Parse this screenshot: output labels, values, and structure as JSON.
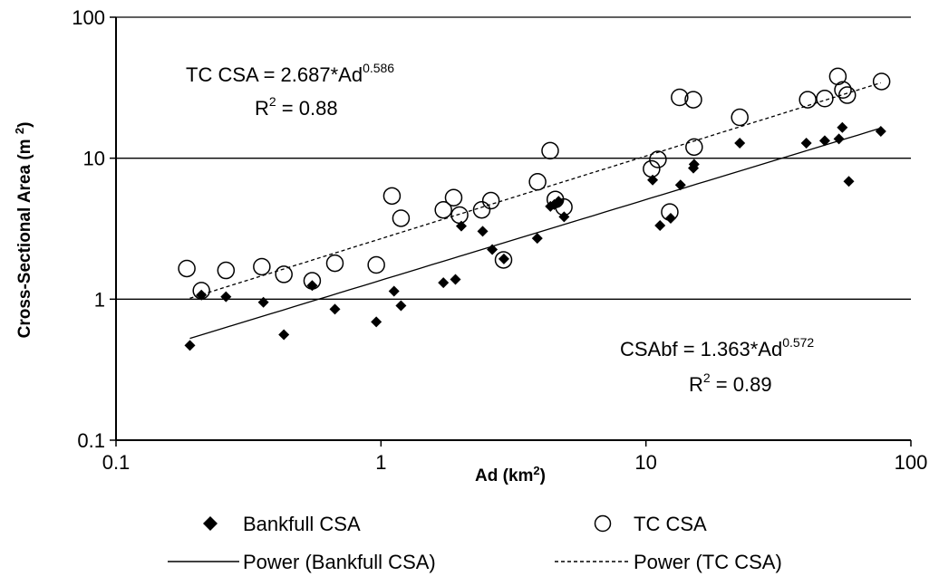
{
  "chart_data": {
    "type": "scatter",
    "x_scale": "log",
    "y_scale": "log",
    "xlim": [
      0.1,
      100
    ],
    "ylim": [
      0.1,
      100
    ],
    "x_ticks": [
      "0.1",
      "1",
      "10",
      "100"
    ],
    "y_ticks": [
      "0.1",
      "1",
      "10",
      "100"
    ],
    "xlabel": {
      "main": "Ad (km",
      "sup": "2",
      "tail": ")"
    },
    "ylabel": {
      "main": "Cross-Sectional Area (m ",
      "sup": "2",
      "tail": ")"
    },
    "grid": "horizontal major lines",
    "legend_position": "bottom",
    "series": [
      {
        "name": "Bankfull CSA",
        "marker": "filled-diamond",
        "points": [
          [
            0.19,
            0.47
          ],
          [
            0.21,
            1.07
          ],
          [
            0.26,
            1.04
          ],
          [
            0.36,
            0.95
          ],
          [
            0.43,
            0.56
          ],
          [
            0.55,
            1.25
          ],
          [
            0.67,
            0.85
          ],
          [
            0.96,
            0.69
          ],
          [
            1.12,
            1.14
          ],
          [
            1.19,
            0.9
          ],
          [
            1.72,
            1.31
          ],
          [
            1.91,
            1.38
          ],
          [
            2.01,
            3.3
          ],
          [
            2.42,
            3.03
          ],
          [
            2.63,
            2.25
          ],
          [
            2.91,
            1.93
          ],
          [
            3.89,
            2.7
          ],
          [
            4.36,
            4.55
          ],
          [
            4.51,
            4.69
          ],
          [
            4.68,
            4.95
          ],
          [
            4.91,
            3.84
          ],
          [
            10.6,
            7.0
          ],
          [
            11.3,
            3.33
          ],
          [
            12.4,
            3.75
          ],
          [
            13.5,
            6.45
          ],
          [
            15.1,
            8.5
          ],
          [
            15.2,
            9.05
          ],
          [
            22.6,
            12.8
          ],
          [
            40.3,
            12.8
          ],
          [
            47.3,
            13.3
          ],
          [
            53.5,
            13.7
          ],
          [
            55.1,
            16.5
          ],
          [
            58.3,
            6.85
          ],
          [
            77.0,
            15.5
          ]
        ]
      },
      {
        "name": "TC CSA",
        "marker": "open-circle",
        "points": [
          [
            0.185,
            1.65
          ],
          [
            0.21,
            1.15
          ],
          [
            0.26,
            1.6
          ],
          [
            0.355,
            1.7
          ],
          [
            0.43,
            1.5
          ],
          [
            0.55,
            1.35
          ],
          [
            0.67,
            1.8
          ],
          [
            0.96,
            1.75
          ],
          [
            1.1,
            5.4
          ],
          [
            1.19,
            3.75
          ],
          [
            1.72,
            4.3
          ],
          [
            1.88,
            5.25
          ],
          [
            1.98,
            3.95
          ],
          [
            2.4,
            4.3
          ],
          [
            2.6,
            5.0
          ],
          [
            2.9,
            1.9
          ],
          [
            3.9,
            6.8
          ],
          [
            4.35,
            11.3
          ],
          [
            4.55,
            5.1
          ],
          [
            4.9,
            4.5
          ],
          [
            10.5,
            8.4
          ],
          [
            11.1,
            9.8
          ],
          [
            12.3,
            4.15
          ],
          [
            13.4,
            27.0
          ],
          [
            15.1,
            26.0
          ],
          [
            15.2,
            12.0
          ],
          [
            22.6,
            19.5
          ],
          [
            40.8,
            26.0
          ],
          [
            47.3,
            26.5
          ],
          [
            53.0,
            38.0
          ],
          [
            55.4,
            30.5
          ],
          [
            57.5,
            28.0
          ],
          [
            77.5,
            35.0
          ]
        ]
      },
      {
        "name": "Power (Bankfull CSA)",
        "type": "trendline",
        "style": "solid",
        "equation": {
          "lhs": "CSAbf = 1.363*Ad",
          "exp": "0.572",
          "coef": 1.363,
          "power": 0.572
        },
        "r2": {
          "lhs": "R",
          "sup": "2",
          "rhs": " = 0.89"
        },
        "x_range": [
          0.19,
          77
        ]
      },
      {
        "name": "Power (TC CSA)",
        "type": "trendline",
        "style": "dashed",
        "equation": {
          "lhs": "TC CSA = 2.687*Ad",
          "exp": "0.586",
          "coef": 2.687,
          "power": 0.586
        },
        "r2": {
          "lhs": "R",
          "sup": "2",
          "rhs": " = 0.88"
        },
        "x_range": [
          0.19,
          77
        ]
      }
    ]
  },
  "colors": {
    "marker": "#000000",
    "grid": "#000000",
    "background": "#ffffff"
  }
}
